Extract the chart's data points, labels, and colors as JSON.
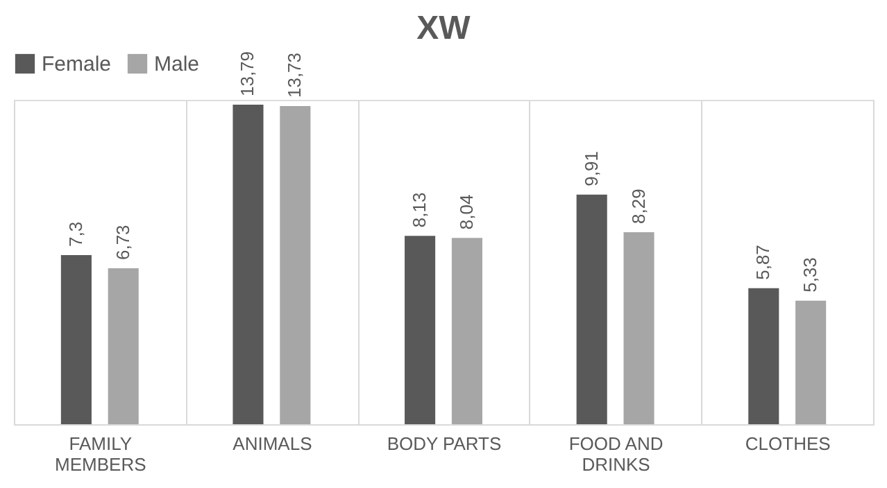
{
  "chart_data": {
    "type": "bar",
    "title": "XW",
    "categories": [
      "FAMILY MEMBERS",
      "ANIMALS",
      "BODY PARTS",
      "FOOD AND DRINKS",
      "CLOTHES"
    ],
    "series": [
      {
        "name": "Female",
        "color": "#595959",
        "values": [
          7.3,
          13.79,
          8.13,
          9.91,
          5.87
        ],
        "value_labels": [
          "7,3",
          "13,79",
          "8,13",
          "9,91",
          "5,87"
        ]
      },
      {
        "name": "Male",
        "color": "#a6a6a6",
        "values": [
          6.73,
          13.73,
          8.04,
          8.29,
          5.33
        ],
        "value_labels": [
          "6,73",
          "13,73",
          "8,04",
          "8,29",
          "5,33"
        ]
      }
    ],
    "grid": "x",
    "legend": "top"
  }
}
